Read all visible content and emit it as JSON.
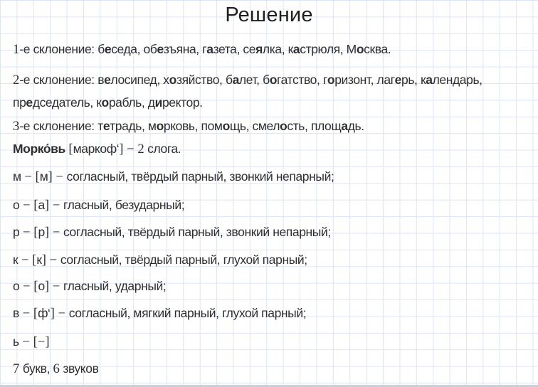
{
  "title": "Решение",
  "colors": {
    "background": "#ffffff",
    "grid_line": "#dde4f6",
    "text": "#2f2f2f",
    "bottom_edge": "#ccd0d8"
  },
  "lines": [
    {
      "name": "declension-1",
      "segments": [
        {
          "t": "1",
          "sf": true
        },
        {
          "t": "-е склонение: б"
        },
        {
          "t": "е",
          "b": true
        },
        {
          "t": "седа, об"
        },
        {
          "t": "е",
          "b": true
        },
        {
          "t": "зъяна, г"
        },
        {
          "t": "а",
          "b": true
        },
        {
          "t": "зета, се"
        },
        {
          "t": "я",
          "b": true
        },
        {
          "t": "лка, к"
        },
        {
          "t": "а",
          "b": true
        },
        {
          "t": "стрюля, М"
        },
        {
          "t": "о",
          "b": true
        },
        {
          "t": "сква."
        }
      ]
    },
    {
      "name": "declension-2",
      "segments": [
        {
          "t": "2",
          "sf": true
        },
        {
          "t": "-е склонение: в"
        },
        {
          "t": "е",
          "b": true
        },
        {
          "t": "лосипед, х"
        },
        {
          "t": "о",
          "b": true
        },
        {
          "t": "зяйство, б"
        },
        {
          "t": "а",
          "b": true
        },
        {
          "t": "лет, б"
        },
        {
          "t": "о",
          "b": true
        },
        {
          "t": "гатство, г"
        },
        {
          "t": "о",
          "b": true
        },
        {
          "t": "ризонт, лаг"
        },
        {
          "t": "е",
          "b": true
        },
        {
          "t": "рь, к"
        },
        {
          "t": "а",
          "b": true
        },
        {
          "t": "лендарь,"
        }
      ]
    },
    {
      "name": "declension-2-continued",
      "segments": [
        {
          "t": "пр"
        },
        {
          "t": "е",
          "b": true
        },
        {
          "t": "дседатель, к"
        },
        {
          "t": "о",
          "b": true
        },
        {
          "t": "рабль, д"
        },
        {
          "t": "и",
          "b": true
        },
        {
          "t": "ректор."
        }
      ]
    },
    {
      "name": "declension-3",
      "segments": [
        {
          "t": "3",
          "sf": true
        },
        {
          "t": "-е склонение: т"
        },
        {
          "t": "е",
          "b": true
        },
        {
          "t": "традь, м"
        },
        {
          "t": "о",
          "b": true
        },
        {
          "t": "рковь, пом"
        },
        {
          "t": "о",
          "b": true
        },
        {
          "t": "щь, смел"
        },
        {
          "t": "о",
          "b": true
        },
        {
          "t": "сть, площ"
        },
        {
          "t": "а",
          "b": true
        },
        {
          "t": "дь."
        }
      ]
    },
    {
      "name": "word-syllables",
      "segments": [
        {
          "t": "Морко́вь",
          "b": true
        },
        {
          "t": " "
        },
        {
          "t": "[",
          "sf": true
        },
        {
          "t": "маркоф‘"
        },
        {
          "t": "]",
          "sf": true
        },
        {
          "t": " − 2",
          "sf": true
        },
        {
          "t": " слога."
        }
      ]
    },
    {
      "name": "phoneme-m",
      "segments": [
        {
          "t": "м"
        },
        {
          "t": " − [",
          "sf": true
        },
        {
          "t": "м"
        },
        {
          "t": "] − ",
          "sf": true
        },
        {
          "t": "согласный, твёрдый парный, звонкий непарный;"
        }
      ]
    },
    {
      "name": "phoneme-o-1",
      "segments": [
        {
          "t": "о"
        },
        {
          "t": " − [",
          "sf": true
        },
        {
          "t": "а"
        },
        {
          "t": "] − ",
          "sf": true
        },
        {
          "t": "гласный, безударный;"
        }
      ]
    },
    {
      "name": "phoneme-r",
      "segments": [
        {
          "t": "р"
        },
        {
          "t": " − [",
          "sf": true
        },
        {
          "t": "р"
        },
        {
          "t": "] − ",
          "sf": true
        },
        {
          "t": "согласный, твёрдый парный, звонкий непарный;"
        }
      ]
    },
    {
      "name": "phoneme-k",
      "segments": [
        {
          "t": "к"
        },
        {
          "t": " − [",
          "sf": true
        },
        {
          "t": "к"
        },
        {
          "t": "] − ",
          "sf": true
        },
        {
          "t": "согласный, твёрдый парный, глухой парный;"
        }
      ]
    },
    {
      "name": "phoneme-o-2",
      "segments": [
        {
          "t": "о"
        },
        {
          "t": " − [",
          "sf": true
        },
        {
          "t": "о"
        },
        {
          "t": "] − ",
          "sf": true
        },
        {
          "t": "гласный, ударный;"
        }
      ]
    },
    {
      "name": "phoneme-v",
      "segments": [
        {
          "t": "в"
        },
        {
          "t": " − [",
          "sf": true
        },
        {
          "t": "ф‘"
        },
        {
          "t": "] − ",
          "sf": true
        },
        {
          "t": "согласный, мягкий парный, глухой парный;"
        }
      ]
    },
    {
      "name": "phoneme-soft-sign",
      "segments": [
        {
          "t": "ь"
        },
        {
          "t": " − [−]",
          "sf": true
        }
      ]
    },
    {
      "name": "letters-sounds-count",
      "segments": [
        {
          "t": "7",
          "sf": true
        },
        {
          "t": " букв, "
        },
        {
          "t": "6",
          "sf": true
        },
        {
          "t": " звуков"
        }
      ]
    }
  ]
}
